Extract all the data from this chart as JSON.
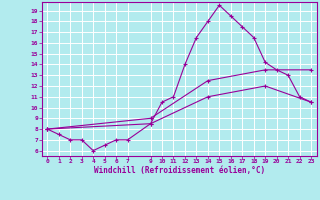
{
  "xlabel": "Windchill (Refroidissement éolien,°C)",
  "background_color": "#b2ebee",
  "grid_color": "#ffffff",
  "line_color": "#990099",
  "x_ticks": [
    0,
    1,
    2,
    3,
    4,
    5,
    6,
    7,
    9,
    10,
    11,
    12,
    13,
    14,
    15,
    16,
    17,
    18,
    19,
    20,
    21,
    22,
    23
  ],
  "y_ticks": [
    6,
    7,
    8,
    9,
    10,
    11,
    12,
    13,
    14,
    15,
    16,
    17,
    18,
    19
  ],
  "ylim": [
    5.5,
    19.8
  ],
  "xlim": [
    -0.5,
    23.5
  ],
  "line1_x": [
    0,
    1,
    2,
    3,
    4,
    5,
    6,
    7,
    9,
    10,
    11,
    12,
    13,
    14,
    15,
    16,
    17,
    18,
    19,
    20,
    21,
    22,
    23
  ],
  "line1_y": [
    8.0,
    7.5,
    7.0,
    7.0,
    6.0,
    6.5,
    7.0,
    7.0,
    8.5,
    10.5,
    11.0,
    14.0,
    16.5,
    18.0,
    19.5,
    18.5,
    17.5,
    16.5,
    14.2,
    13.5,
    13.0,
    11.0,
    10.5
  ],
  "line2_x": [
    0,
    9,
    14,
    19,
    23
  ],
  "line2_y": [
    8.0,
    8.5,
    11.0,
    12.0,
    10.5
  ],
  "line3_x": [
    0,
    9,
    14,
    19,
    23
  ],
  "line3_y": [
    8.0,
    9.0,
    12.5,
    13.5,
    13.5
  ]
}
